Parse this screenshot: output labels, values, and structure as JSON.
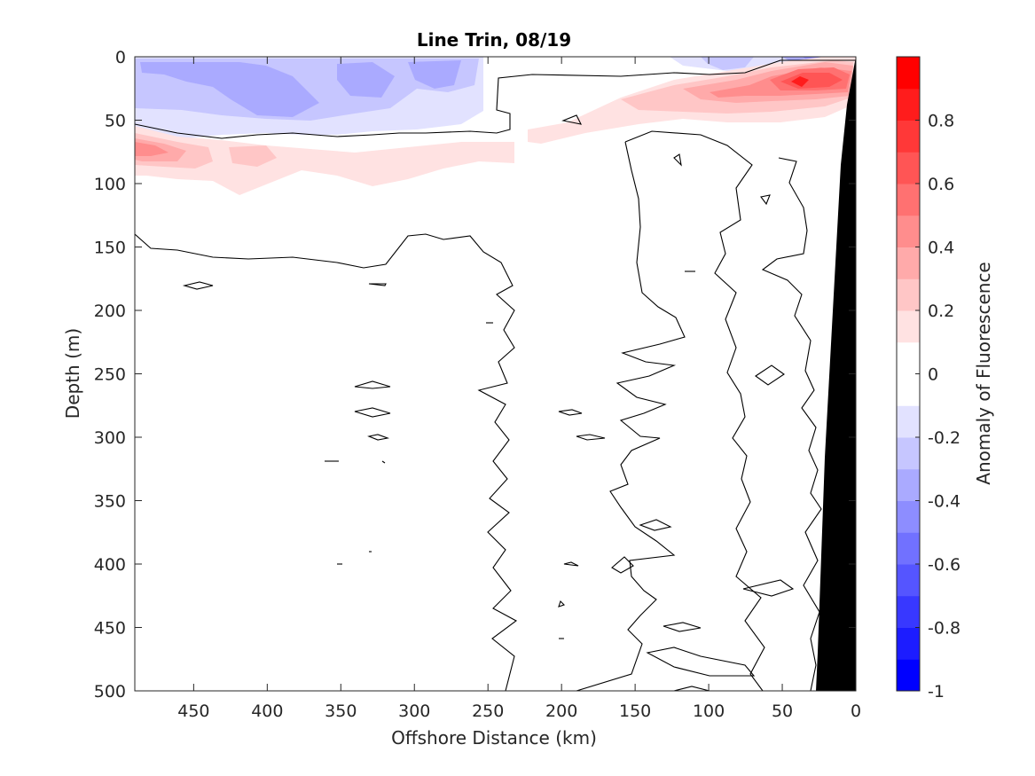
{
  "chart_data": {
    "type": "heatmap",
    "title": "Line Trin, 08/19",
    "xlabel": "Offshore Distance (km)",
    "ylabel": "Depth (m)",
    "xlim": [
      490,
      0
    ],
    "ylim": [
      0,
      500
    ],
    "x_reversed": true,
    "y_reversed": true,
    "x_ticks": [
      450,
      400,
      350,
      300,
      250,
      200,
      150,
      100,
      50,
      0
    ],
    "y_ticks": [
      0,
      50,
      100,
      150,
      200,
      250,
      300,
      350,
      400,
      450,
      500
    ],
    "colorbar": {
      "label": "Anomaly of Fluorescence",
      "range": [
        -1,
        1
      ],
      "ticks": [
        0.8,
        0.6,
        0.4,
        0.2,
        0,
        -0.2,
        -0.4,
        -0.6,
        -0.8,
        -1
      ],
      "tick_labels": [
        "0.8",
        "0.6",
        "0.4",
        "0.2",
        "0",
        "-0.2",
        "-0.4",
        "-0.6",
        "-0.8",
        "-1"
      ],
      "levels": [
        -1,
        -0.9,
        -0.8,
        -0.7,
        -0.6,
        -0.5,
        -0.4,
        -0.3,
        -0.2,
        -0.1,
        0.1,
        0.2,
        0.3,
        0.4,
        0.5,
        0.6,
        0.7,
        0.8,
        0.9,
        1
      ],
      "colors": [
        "#0000ff",
        "#1c1cff",
        "#3838ff",
        "#5555ff",
        "#7171ff",
        "#8d8dff",
        "#aaaaff",
        "#c6c6ff",
        "#e2e2ff",
        "#ffffff",
        "#ffe2e2",
        "#ffc6c6",
        "#ffaaaa",
        "#ff8d8d",
        "#ff7171",
        "#ff5555",
        "#ff3838",
        "#ff1c1c",
        "#ff0000"
      ]
    },
    "features": [
      {
        "name": "negative anomaly (surface layer)",
        "depth_range": [
          0,
          60
        ],
        "x_range": [
          490,
          240
        ],
        "value_range": [
          -0.4,
          -0.2
        ]
      },
      {
        "name": "negative anomaly (nearshore surface)",
        "depth_range": [
          0,
          8
        ],
        "x_range": [
          110,
          20
        ],
        "value_range": [
          -0.6,
          -0.2
        ]
      },
      {
        "name": "positive anomaly (subsurface offshore)",
        "depth_range": [
          55,
          100
        ],
        "x_range": [
          490,
          210
        ],
        "value_range": [
          0.1,
          0.4
        ]
      },
      {
        "name": "positive anomaly (nearshore maximum)",
        "depth_range": [
          5,
          50
        ],
        "x_range": [
          190,
          2
        ],
        "value_range": [
          0.1,
          0.8
        ]
      },
      {
        "name": "bottom / land mask",
        "color": "#000000"
      }
    ],
    "colors": {
      "axes": "#262626",
      "contour": "#000000",
      "mask": "#000000"
    }
  }
}
